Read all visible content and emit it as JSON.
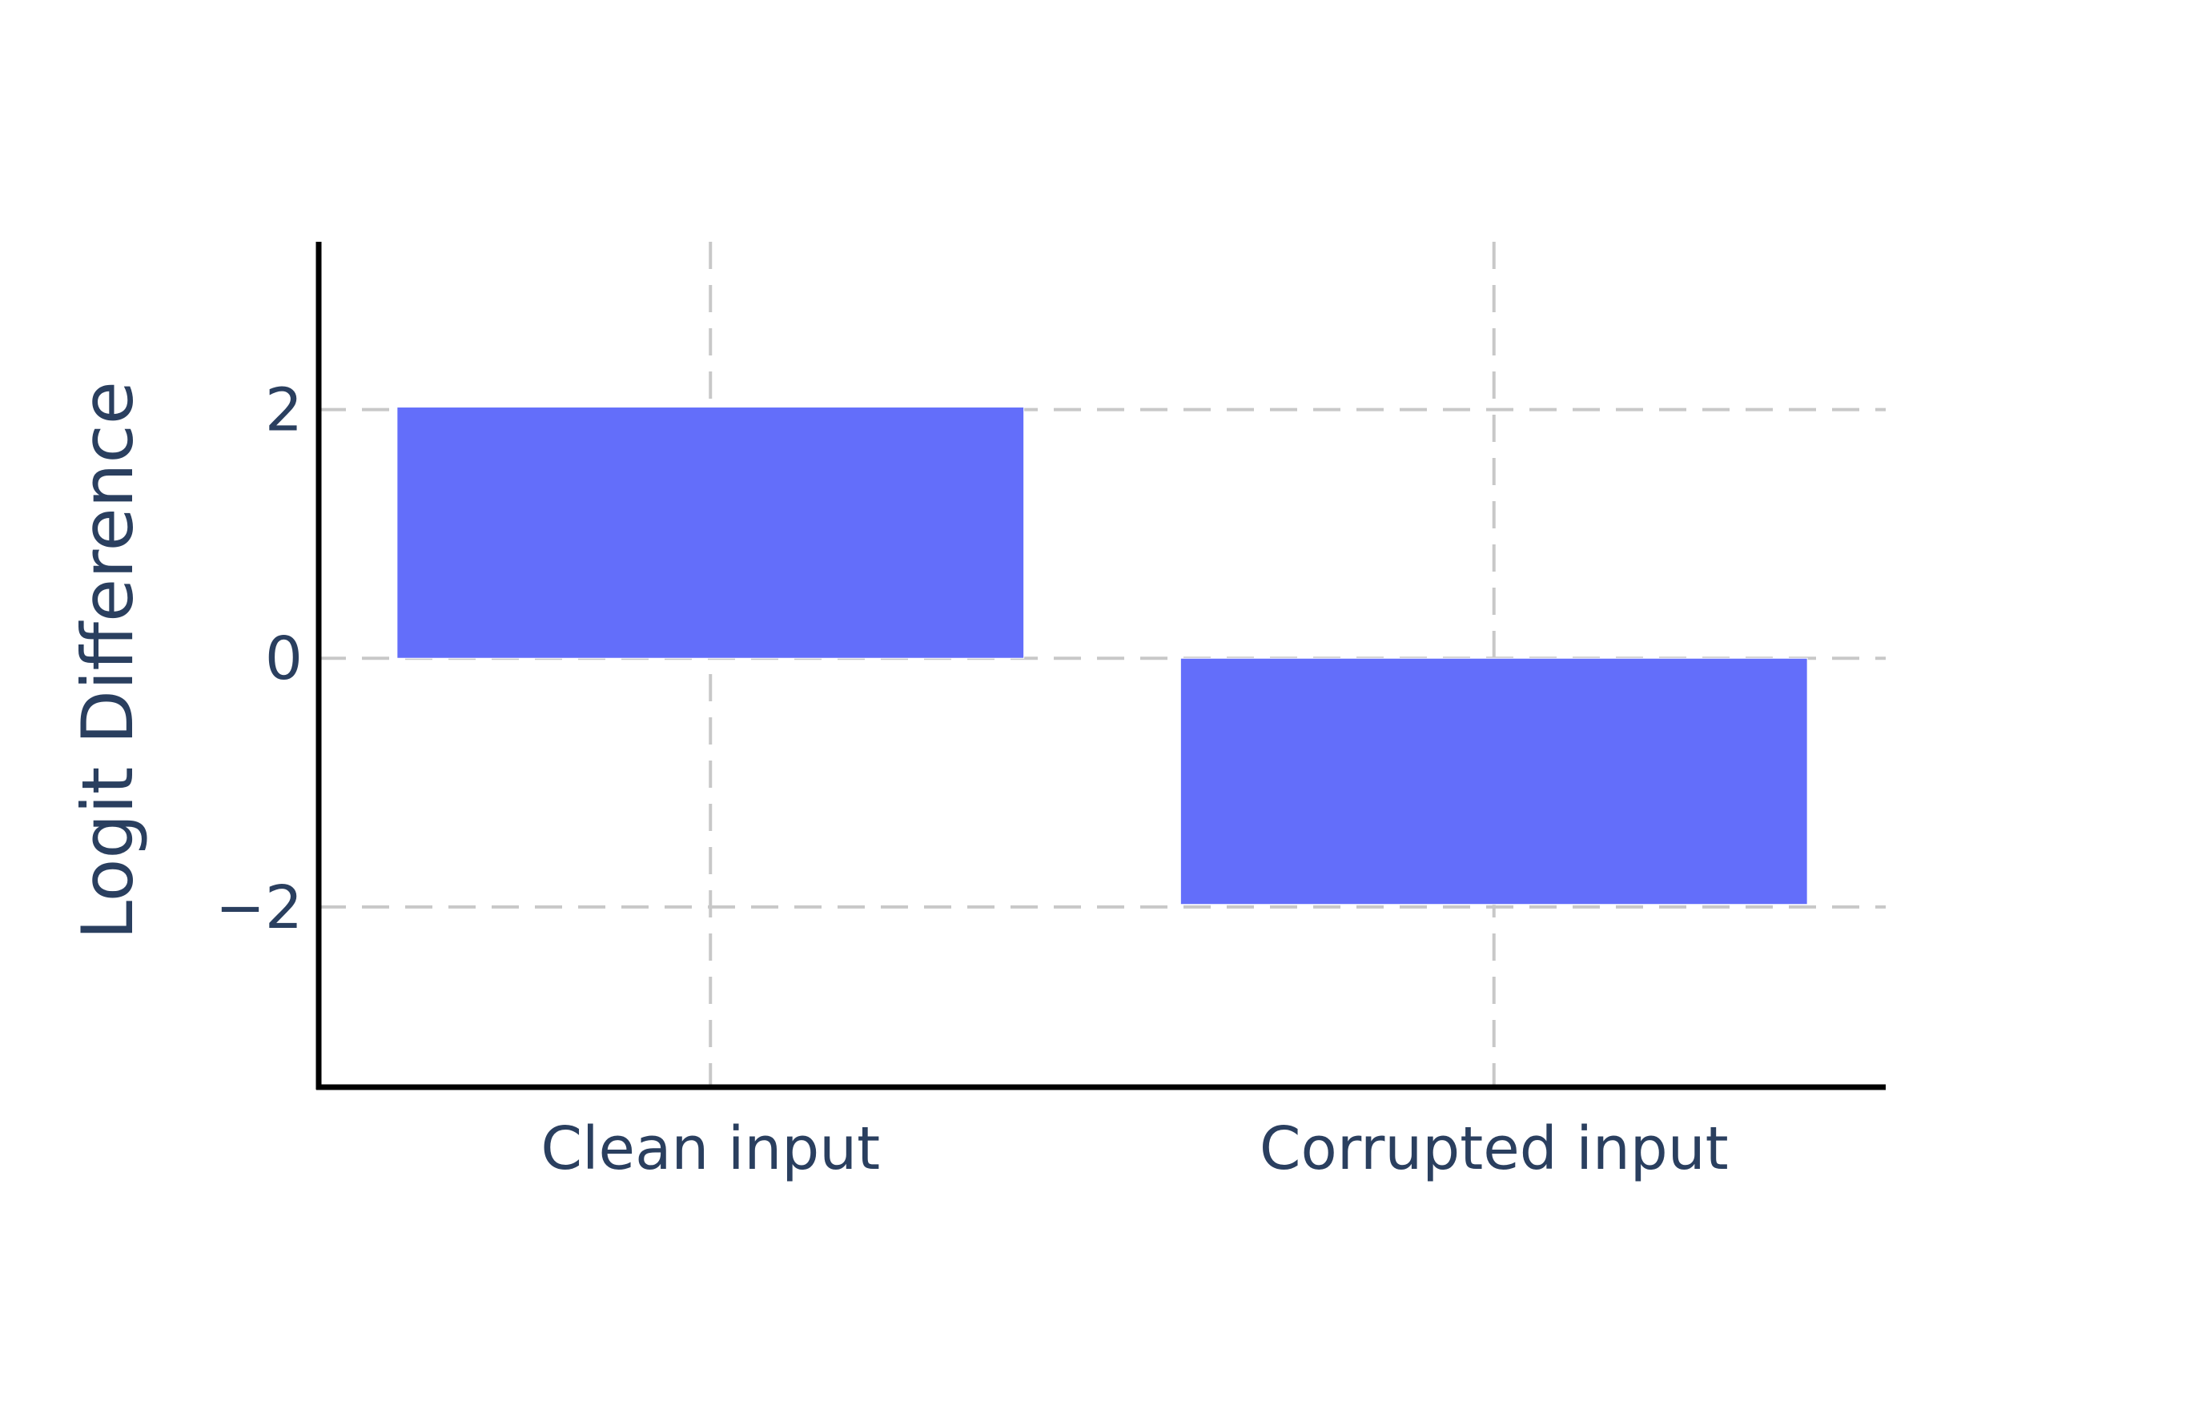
{
  "chart_data": {
    "type": "bar",
    "categories": [
      "Clean input",
      "Corrupted input"
    ],
    "values": [
      2.02,
      -1.98
    ],
    "title": "",
    "xlabel": "",
    "ylabel": "Logit Difference",
    "ylim": [
      -3.45,
      3.35
    ],
    "yticks": [
      -2,
      0,
      2
    ],
    "ytick_labels": [
      "−2",
      "0",
      "2"
    ],
    "grid": true,
    "grid_style": "dashed",
    "legend": "none",
    "colors": {
      "bar": "#636efa",
      "text": "#2a3f5f",
      "grid": "#c8c8c8",
      "axis": "#000000",
      "background": "#ffffff"
    }
  }
}
